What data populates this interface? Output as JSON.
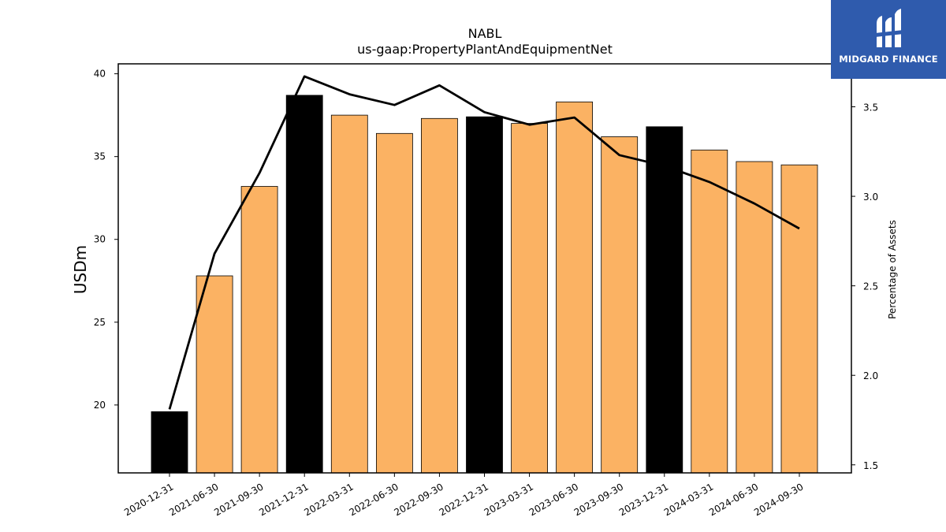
{
  "chart_data": {
    "type": "bar",
    "title": "NABL",
    "subtitle": "us-gaap:PropertyPlantAndEquipmentNet",
    "ylabel": "USDm",
    "y2label": "Percentage of Assets",
    "ylim": [
      15.9,
      40.6
    ],
    "y2lim": [
      1.455,
      3.74
    ],
    "yticks": [
      20,
      25,
      30,
      35,
      40
    ],
    "y2ticks": [
      "1.5",
      "2.0",
      "2.5",
      "3.0",
      "3.5"
    ],
    "categories": [
      "2020-12-31",
      "2021-06-30",
      "2021-09-30",
      "2021-12-31",
      "2022-03-31",
      "2022-06-30",
      "2022-09-30",
      "2022-12-31",
      "2023-03-31",
      "2023-06-30",
      "2023-09-30",
      "2023-12-31",
      "2024-03-31",
      "2024-06-30",
      "2024-09-30"
    ],
    "values": [
      19.6,
      27.8,
      33.2,
      38.7,
      37.5,
      36.4,
      37.3,
      37.4,
      37.0,
      38.3,
      36.2,
      36.8,
      35.4,
      34.7,
      34.5
    ],
    "bar_colors": [
      "#000000",
      "#fbb263",
      "#fbb263",
      "#000000",
      "#fbb263",
      "#fbb263",
      "#fbb263",
      "#000000",
      "#fbb263",
      "#fbb263",
      "#fbb263",
      "#000000",
      "#fbb263",
      "#fbb263",
      "#fbb263"
    ],
    "line_series": {
      "values": [
        1.81,
        2.68,
        3.13,
        3.67,
        3.57,
        3.51,
        3.62,
        3.47,
        3.4,
        3.44,
        3.23,
        3.17,
        3.08,
        2.96,
        2.82
      ],
      "color": "#000000"
    },
    "grid": false
  },
  "logo": {
    "text": "MIDGARD FINANCE",
    "color": "#2f5bad"
  }
}
